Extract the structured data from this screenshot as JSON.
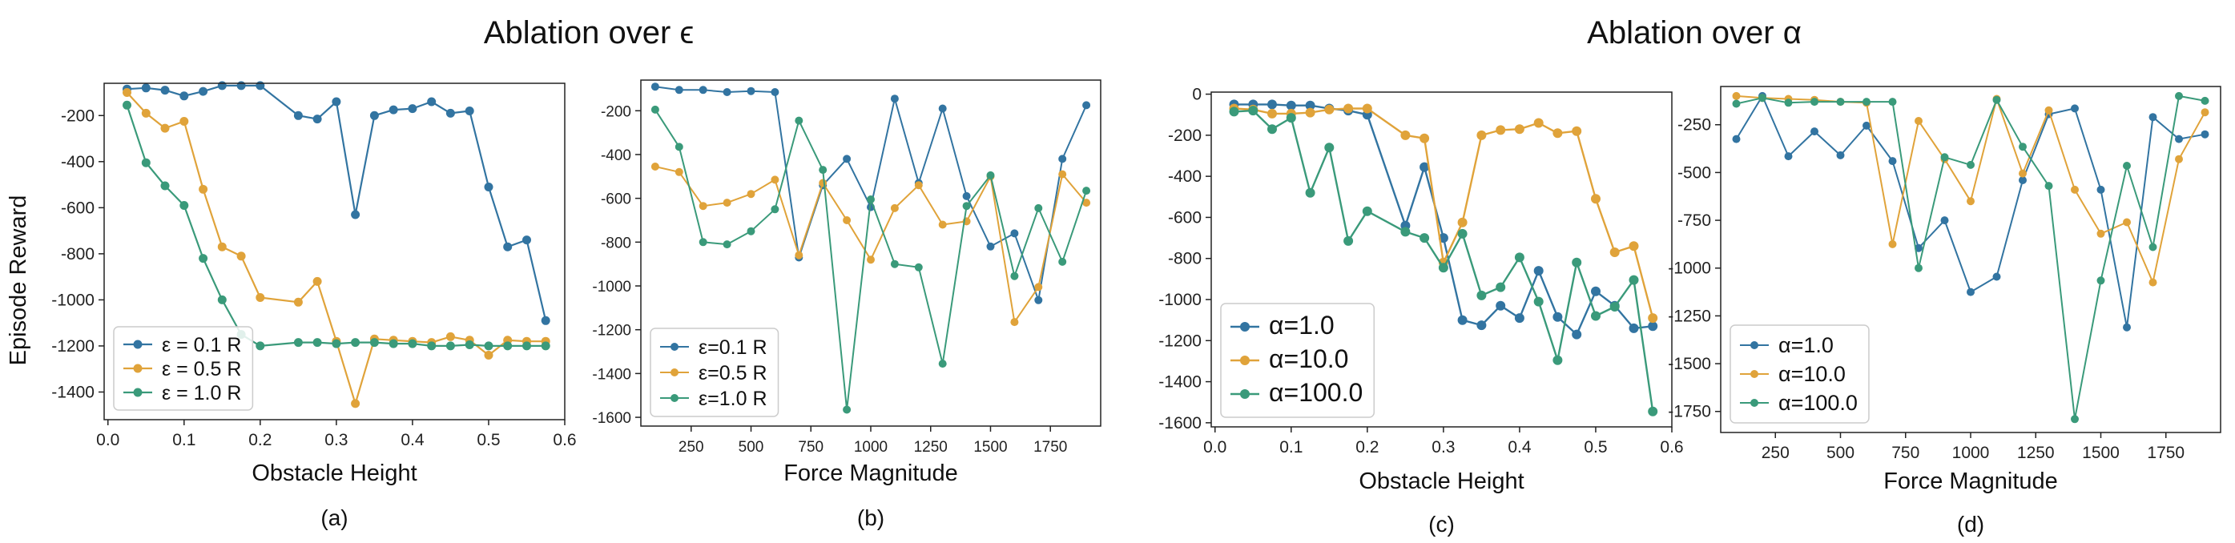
{
  "titles": {
    "left": "Ablation over ϵ",
    "right": "Ablation over α"
  },
  "y_label": "Episode Reward",
  "colors": {
    "blue": "#3274a1",
    "orange": "#e0a33a",
    "green": "#3a9a7a"
  },
  "chart_data": [
    {
      "id": "a",
      "type": "line",
      "caption": "(a)",
      "xlabel": "Obstacle Height",
      "ylabel": "Episode Reward",
      "xlim": [
        -0.005,
        0.6
      ],
      "ylim": [
        -1520,
        -60
      ],
      "xticks": [
        "0.0",
        "0.1",
        "0.2",
        "0.3",
        "0.4",
        "0.5",
        "0.6"
      ],
      "xtick_values": [
        0.0,
        0.1,
        0.2,
        0.3,
        0.4,
        0.5,
        0.6
      ],
      "yticks": [
        "-200",
        "-400",
        "-600",
        "-800",
        "-1000",
        "-1200",
        "-1400"
      ],
      "ytick_values": [
        -200,
        -400,
        -600,
        -800,
        -1000,
        -1200,
        -1400
      ],
      "legend_position": "bottom-left",
      "x": [
        0.025,
        0.05,
        0.075,
        0.1,
        0.125,
        0.15,
        0.175,
        0.2,
        0.25,
        0.275,
        0.3,
        0.325,
        0.35,
        0.375,
        0.4,
        0.425,
        0.45,
        0.475,
        0.5,
        0.525,
        0.55,
        0.575
      ],
      "series": [
        {
          "name": "ε = 0.1 R",
          "color": "blue",
          "values": [
            -85,
            -80,
            -90,
            -115,
            -95,
            -70,
            -70,
            -70,
            -200,
            -215,
            -140,
            -630,
            -200,
            -175,
            -170,
            -140,
            -190,
            -180,
            -510,
            -770,
            -740,
            -1090
          ]
        },
        {
          "name": "ε = 0.5 R",
          "color": "orange",
          "values": [
            -100,
            -190,
            -255,
            -225,
            -520,
            -770,
            -810,
            -990,
            -1010,
            -920,
            -1180,
            -1450,
            -1170,
            -1175,
            -1180,
            -1185,
            -1160,
            -1175,
            -1240,
            -1175,
            -1180,
            -1180
          ]
        },
        {
          "name": "ε = 1.0 R",
          "color": "green",
          "values": [
            -155,
            -405,
            -505,
            -590,
            -820,
            -1000,
            -1150,
            -1200,
            -1185,
            -1185,
            -1190,
            -1185,
            -1185,
            -1190,
            -1190,
            -1200,
            -1200,
            -1195,
            -1200,
            -1200,
            -1200,
            -1200
          ]
        }
      ]
    },
    {
      "id": "b",
      "type": "line",
      "caption": "(b)",
      "xlabel": "Force Magnitude",
      "ylabel": "",
      "xlim": [
        40,
        1960
      ],
      "ylim": [
        -1640,
        -60
      ],
      "xticks": [
        "250",
        "500",
        "750",
        "1000",
        "1250",
        "1500",
        "1750"
      ],
      "xtick_values": [
        250,
        500,
        750,
        1000,
        1250,
        1500,
        1750
      ],
      "yticks": [
        "-200",
        "-400",
        "-600",
        "-800",
        "-1000",
        "-1200",
        "-1400",
        "-1600"
      ],
      "ytick_values": [
        -200,
        -400,
        -600,
        -800,
        -1000,
        -1200,
        -1400,
        -1600
      ],
      "legend_position": "bottom-left",
      "x": [
        100,
        200,
        300,
        400,
        500,
        600,
        700,
        800,
        900,
        1000,
        1100,
        1200,
        1300,
        1400,
        1500,
        1600,
        1700,
        1800,
        1900
      ],
      "series": [
        {
          "name": "ε=0.1 R",
          "color": "blue",
          "values": [
            -90,
            -105,
            -105,
            -115,
            -110,
            -115,
            -870,
            -540,
            -420,
            -640,
            -145,
            -530,
            -190,
            -590,
            -820,
            -760,
            -1065,
            -420,
            -175
          ]
        },
        {
          "name": "ε=0.5 R",
          "color": "orange",
          "values": [
            -455,
            -480,
            -635,
            -620,
            -580,
            -515,
            -860,
            -530,
            -700,
            -880,
            -645,
            -540,
            -720,
            -705,
            -500,
            -1165,
            -1005,
            -490,
            -620
          ]
        },
        {
          "name": "ε=1.0 R",
          "color": "green",
          "values": [
            -195,
            -365,
            -800,
            -810,
            -750,
            -650,
            -245,
            -470,
            -1565,
            -605,
            -900,
            -915,
            -1355,
            -635,
            -495,
            -955,
            -645,
            -890,
            -565
          ]
        }
      ]
    },
    {
      "id": "c",
      "type": "line",
      "caption": "(c)",
      "xlabel": "Obstacle Height",
      "ylabel": "",
      "xlim": [
        -0.005,
        0.6
      ],
      "ylim": [
        -1620,
        10
      ],
      "xticks": [
        "0.0",
        "0.1",
        "0.2",
        "0.3",
        "0.4",
        "0.5",
        "0.6"
      ],
      "xtick_values": [
        0.0,
        0.1,
        0.2,
        0.3,
        0.4,
        0.5,
        0.6
      ],
      "yticks": [
        "0",
        "-200",
        "-400",
        "-600",
        "-800",
        "-1000",
        "-1200",
        "-1400",
        "-1600"
      ],
      "ytick_values": [
        0,
        -200,
        -400,
        -600,
        -800,
        -1000,
        -1200,
        -1400,
        -1600
      ],
      "legend_position": "bottom-left",
      "x": [
        0.025,
        0.05,
        0.075,
        0.1,
        0.125,
        0.15,
        0.175,
        0.2,
        0.25,
        0.275,
        0.3,
        0.325,
        0.35,
        0.375,
        0.4,
        0.425,
        0.45,
        0.475,
        0.5,
        0.525,
        0.55,
        0.575
      ],
      "series": [
        {
          "name": "α=1.0",
          "color": "blue",
          "values": [
            -50,
            -50,
            -50,
            -55,
            -55,
            -70,
            -80,
            -100,
            -640,
            -355,
            -700,
            -1100,
            -1125,
            -1030,
            -1090,
            -860,
            -1085,
            -1170,
            -960,
            -1030,
            -1140,
            -1130
          ]
        },
        {
          "name": "α=10.0",
          "color": "orange",
          "values": [
            -70,
            -75,
            -95,
            -95,
            -90,
            -75,
            -70,
            -70,
            -200,
            -215,
            -820,
            -625,
            -200,
            -175,
            -170,
            -140,
            -190,
            -180,
            -510,
            -770,
            -740,
            -1090
          ]
        },
        {
          "name": "α=100.0",
          "color": "green",
          "values": [
            -85,
            -80,
            -170,
            -115,
            -480,
            -260,
            -715,
            -570,
            -670,
            -700,
            -845,
            -680,
            -980,
            -940,
            -795,
            -1010,
            -1295,
            -820,
            -1080,
            -1035,
            -905,
            -1545
          ]
        }
      ]
    },
    {
      "id": "d",
      "type": "line",
      "caption": "(d)",
      "xlabel": "Force Magnitude",
      "ylabel": "",
      "xlim": [
        40,
        1960
      ],
      "ylim": [
        -1860,
        -50
      ],
      "xticks": [
        "250",
        "500",
        "750",
        "1000",
        "1250",
        "1500",
        "1750"
      ],
      "xtick_values": [
        250,
        500,
        750,
        1000,
        1250,
        1500,
        1750
      ],
      "yticks": [
        "-250",
        "-500",
        "-750",
        "-1000",
        "-1250",
        "-1500",
        "-1750"
      ],
      "ytick_values": [
        -250,
        -500,
        -750,
        -1000,
        -1250,
        -1500,
        -1750
      ],
      "legend_position": "bottom-left",
      "x": [
        100,
        200,
        300,
        400,
        500,
        600,
        700,
        800,
        900,
        1000,
        1100,
        1200,
        1300,
        1400,
        1500,
        1600,
        1700,
        1800,
        1900
      ],
      "series": [
        {
          "name": "α=1.0",
          "color": "blue",
          "values": [
            -325,
            -100,
            -415,
            -285,
            -410,
            -255,
            -440,
            -895,
            -750,
            -1125,
            -1045,
            -540,
            -195,
            -165,
            -590,
            -1310,
            -210,
            -325,
            -300
          ]
        },
        {
          "name": "α=10.0",
          "color": "orange",
          "values": [
            -100,
            -110,
            -115,
            -120,
            -130,
            -135,
            -875,
            -230,
            -430,
            -650,
            -115,
            -505,
            -175,
            -590,
            -820,
            -760,
            -1075,
            -430,
            -185
          ]
        },
        {
          "name": "α=100.0",
          "color": "green",
          "values": [
            -140,
            -110,
            -135,
            -130,
            -130,
            -130,
            -130,
            -1000,
            -420,
            -460,
            -120,
            -365,
            -570,
            -1790,
            -1065,
            -465,
            -890,
            -100,
            -125
          ]
        }
      ]
    }
  ]
}
